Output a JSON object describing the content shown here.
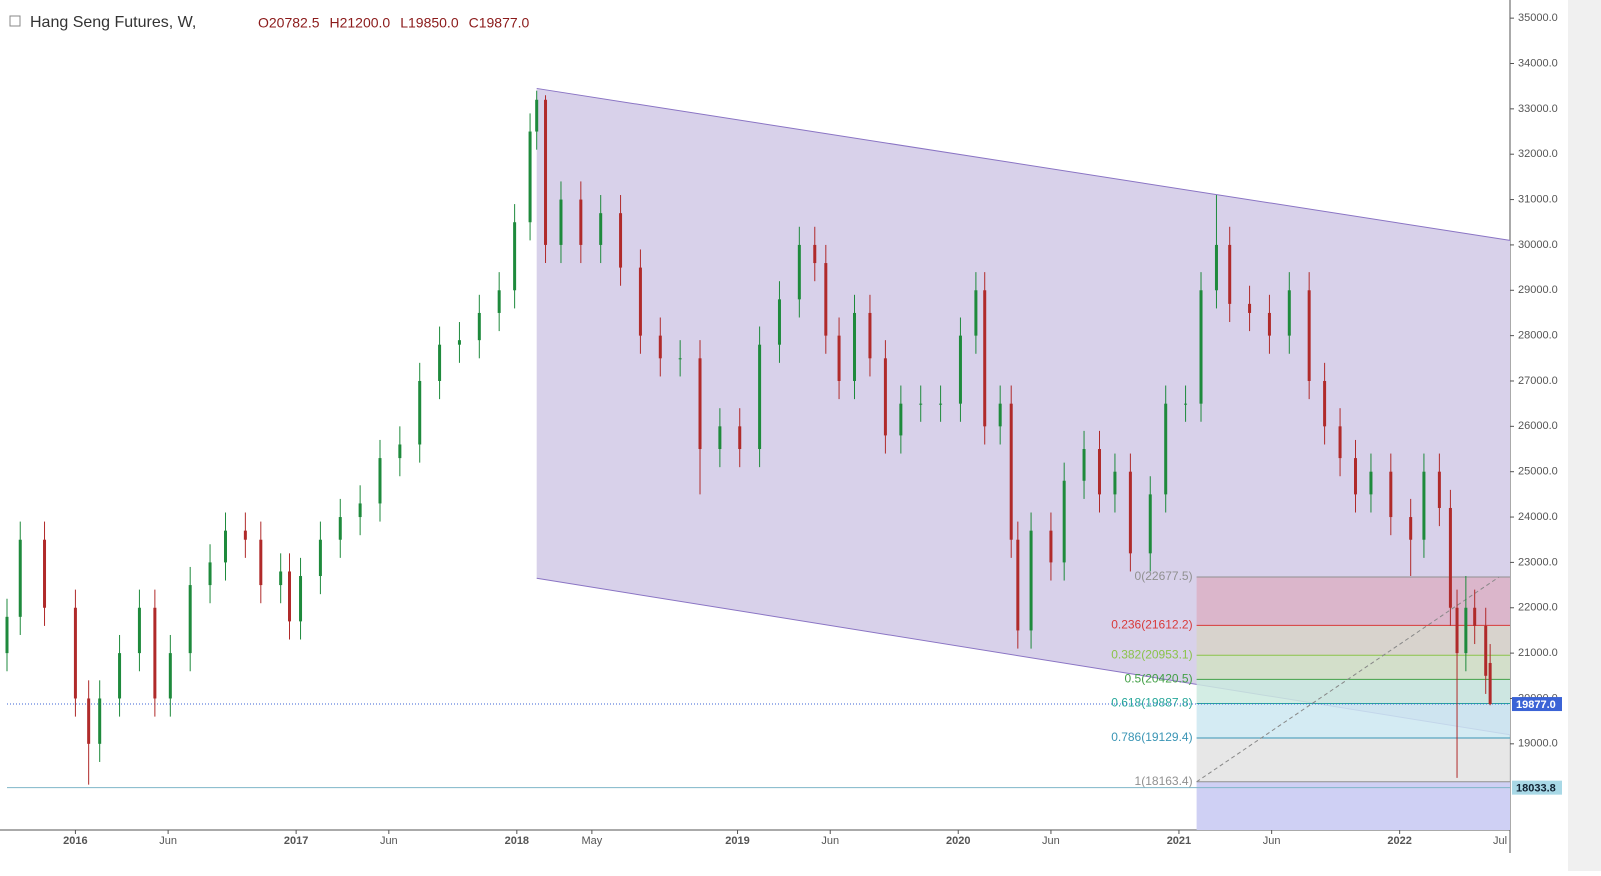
{
  "chart_data": {
    "type": "candlestick",
    "title": "Hang Seng Futures, W,",
    "header_values": [
      "O20782.5",
      "H21200.0",
      "L19850.0",
      "C19877.0"
    ],
    "up_color": "#1e8a3c",
    "down_color": "#b02a2a",
    "x": [
      2015.69,
      2015.75,
      2015.86,
      2016.0,
      2016.06,
      2016.11,
      2016.2,
      2016.29,
      2016.36,
      2016.43,
      2016.52,
      2016.61,
      2016.68,
      2016.77,
      2016.84,
      2016.93,
      2016.97,
      2017.02,
      2017.11,
      2017.2,
      2017.29,
      2017.38,
      2017.47,
      2017.56,
      2017.65,
      2017.74,
      2017.83,
      2017.92,
      2017.99,
      2018.06,
      2018.09,
      2018.13,
      2018.2,
      2018.29,
      2018.38,
      2018.47,
      2018.56,
      2018.65,
      2018.74,
      2018.83,
      2018.92,
      2019.01,
      2019.1,
      2019.19,
      2019.28,
      2019.35,
      2019.4,
      2019.46,
      2019.53,
      2019.6,
      2019.67,
      2019.74,
      2019.83,
      2019.92,
      2020.01,
      2020.08,
      2020.12,
      2020.19,
      2020.24,
      2020.27,
      2020.33,
      2020.42,
      2020.48,
      2020.57,
      2020.64,
      2020.71,
      2020.78,
      2020.87,
      2020.94,
      2021.03,
      2021.1,
      2021.17,
      2021.23,
      2021.32,
      2021.41,
      2021.5,
      2021.59,
      2021.66,
      2021.73,
      2021.8,
      2021.87,
      2021.96,
      2022.05,
      2022.11,
      2022.18,
      2022.23,
      2022.26,
      2022.3,
      2022.34,
      2022.39,
      2022.41
    ],
    "open": [
      21000,
      21800,
      23500,
      22000,
      20000,
      19000,
      20000,
      21000,
      22000,
      20000,
      21000,
      22500,
      23000,
      23700,
      23500,
      22500,
      22800,
      21700,
      22700,
      23500,
      24000,
      24300,
      25300,
      25600,
      27000,
      27800,
      27900,
      28500,
      29000,
      30500,
      32500,
      33200,
      30000,
      31000,
      30000,
      30700,
      29500,
      28000,
      27500,
      27500,
      25500,
      26000,
      25500,
      27800,
      28800,
      30000,
      29600,
      28000,
      27000,
      28500,
      27500,
      25800,
      26500,
      26500,
      26500,
      28000,
      29000,
      26000,
      26500,
      23500,
      21500,
      23700,
      23000,
      24800,
      25500,
      24500,
      25000,
      23200,
      24500,
      26500,
      26500,
      29000,
      30000,
      28700,
      28500,
      28000,
      29000,
      27000,
      26000,
      25300,
      24500,
      25000,
      24000,
      23500,
      25000,
      24200,
      22000,
      21000,
      22000,
      21600,
      20782.5
    ],
    "high": [
      22200,
      23900,
      23900,
      22400,
      20400,
      20400,
      21400,
      22400,
      22400,
      21400,
      22900,
      23400,
      24100,
      24100,
      23900,
      23200,
      23200,
      23100,
      23900,
      24400,
      24700,
      25700,
      26000,
      27400,
      28200,
      28300,
      28900,
      29400,
      30900,
      32900,
      33400,
      33300,
      31400,
      31400,
      31100,
      31100,
      29900,
      28400,
      27900,
      27900,
      26400,
      26400,
      28200,
      29200,
      30400,
      30400,
      30000,
      28400,
      28900,
      28900,
      27900,
      26900,
      26900,
      26900,
      28400,
      29400,
      29400,
      26900,
      26900,
      23900,
      24100,
      24100,
      25200,
      25900,
      25900,
      25400,
      25400,
      24900,
      26900,
      26900,
      29400,
      31100,
      30400,
      29100,
      28900,
      29400,
      29400,
      27400,
      26400,
      25700,
      25400,
      25400,
      24400,
      25400,
      25400,
      24600,
      22400,
      22700,
      22400,
      22000,
      21200
    ],
    "low": [
      20600,
      21400,
      21600,
      19600,
      18100,
      18600,
      19600,
      20600,
      19600,
      19600,
      20600,
      22100,
      22600,
      23100,
      22100,
      22100,
      21300,
      21300,
      22300,
      23100,
      23600,
      23900,
      24900,
      25200,
      26600,
      27400,
      27500,
      28100,
      28600,
      30100,
      32100,
      29600,
      29600,
      29600,
      29600,
      29100,
      27600,
      27100,
      27100,
      24500,
      25100,
      25100,
      25100,
      27400,
      28400,
      29200,
      27600,
      26600,
      26600,
      27100,
      25400,
      25400,
      26100,
      26100,
      26100,
      27600,
      25600,
      25600,
      23100,
      21100,
      21100,
      22600,
      22600,
      24400,
      24100,
      24100,
      22800,
      22800,
      24100,
      26100,
      26100,
      28600,
      28300,
      28100,
      27600,
      27600,
      26600,
      25600,
      24900,
      24100,
      24100,
      23600,
      22700,
      23100,
      23800,
      21600,
      18250,
      20600,
      21200,
      20100,
      19850
    ],
    "close": [
      21800,
      23500,
      22000,
      20000,
      19000,
      20000,
      21000,
      22000,
      20000,
      21000,
      22500,
      23000,
      23700,
      23500,
      22500,
      22800,
      21700,
      22700,
      23500,
      24000,
      24300,
      25300,
      25600,
      27000,
      27800,
      27900,
      28500,
      29000,
      30500,
      32500,
      33200,
      30000,
      31000,
      30000,
      30700,
      29500,
      28000,
      27500,
      27500,
      25500,
      26000,
      25500,
      27800,
      28800,
      30000,
      29600,
      28000,
      27000,
      28500,
      27500,
      25800,
      26500,
      26500,
      26500,
      28000,
      29000,
      26000,
      26500,
      23500,
      21500,
      23700,
      23000,
      24800,
      25500,
      24500,
      25000,
      23200,
      24500,
      26500,
      26500,
      29000,
      30000,
      28700,
      28500,
      28000,
      29000,
      27000,
      26000,
      25300,
      24500,
      25000,
      24000,
      23500,
      25000,
      24200,
      22000,
      21000,
      22000,
      21600,
      20500,
      19877
    ],
    "xlim": [
      2015.69,
      2022.5
    ],
    "ylim": [
      17100,
      35400
    ],
    "xticks": [
      {
        "value": 2016,
        "label": "2016"
      },
      {
        "value": 2016.42,
        "label": "Jun"
      },
      {
        "value": 2017,
        "label": "2017"
      },
      {
        "value": 2017.42,
        "label": "Jun"
      },
      {
        "value": 2018,
        "label": "2018"
      },
      {
        "value": 2018.34,
        "label": "May"
      },
      {
        "value": 2019,
        "label": "2019"
      },
      {
        "value": 2019.42,
        "label": "Jun"
      },
      {
        "value": 2020,
        "label": "2020"
      },
      {
        "value": 2020.42,
        "label": "Jun"
      },
      {
        "value": 2021,
        "label": "2021"
      },
      {
        "value": 2021.42,
        "label": "Jun"
      },
      {
        "value": 2022,
        "label": "2022"
      },
      {
        "value": 2022.5,
        "label": "Jul"
      }
    ],
    "yticks": [
      {
        "value": 19000,
        "label": "19000.0"
      },
      {
        "value": 20000,
        "label": "20000.0"
      },
      {
        "value": 21000,
        "label": "21000.0"
      },
      {
        "value": 22000,
        "label": "22000.0"
      },
      {
        "value": 23000,
        "label": "23000.0"
      },
      {
        "value": 24000,
        "label": "24000.0"
      },
      {
        "value": 25000,
        "label": "25000.0"
      },
      {
        "value": 26000,
        "label": "26000.0"
      },
      {
        "value": 27000,
        "label": "27000.0"
      },
      {
        "value": 28000,
        "label": "28000.0"
      },
      {
        "value": 29000,
        "label": "29000.0"
      },
      {
        "value": 30000,
        "label": "30000.0"
      },
      {
        "value": 31000,
        "label": "31000.0"
      },
      {
        "value": 32000,
        "label": "32000.0"
      },
      {
        "value": 33000,
        "label": "33000.0"
      },
      {
        "value": 34000,
        "label": "34000.0"
      },
      {
        "value": 35000,
        "label": "35000.0"
      }
    ],
    "channel": {
      "x": [
        2018.09,
        2022.5
      ],
      "upper": [
        33450,
        30100
      ],
      "lower": [
        22650,
        19200
      ],
      "color": "#8a74c4",
      "fill": "#d8d1ea"
    },
    "fib": {
      "x": [
        2021.08,
        2022.5
      ],
      "trend_end_x": 2022.45,
      "levels": [
        {
          "value": 22677.5,
          "label": "0(22677.5)",
          "color": "#909090"
        },
        {
          "value": 21612.2,
          "label": "0.236(21612.2)",
          "color": "#d83a3a"
        },
        {
          "value": 20953.1,
          "label": "0.382(20953.1)",
          "color": "#8bc34a"
        },
        {
          "value": 20420.5,
          "label": "0.5(20420.5)",
          "color": "#43a047"
        },
        {
          "value": 19887.8,
          "label": "0.618(19887.8)",
          "color": "#26a69a"
        },
        {
          "value": 19129.4,
          "label": "0.786(19129.4)",
          "color": "#3a95b5"
        },
        {
          "value": 18163.4,
          "label": "1(18163.4)",
          "color": "#909090"
        }
      ],
      "band_colors": [
        "#dcb2c6",
        "#d8d4c8",
        "#d2e2c4",
        "#cbeadf",
        "#cde7f1",
        "#e3e3e3"
      ],
      "below_color": "#cfd0f4"
    },
    "last_price": {
      "value": 19877,
      "label": "19877.0",
      "color": "#3b63d6"
    },
    "marker_price": {
      "value": 18033.8,
      "label": "18033.8",
      "color": "#a8d8e6"
    }
  }
}
